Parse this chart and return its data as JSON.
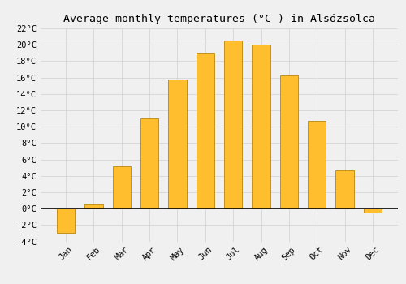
{
  "title": "Average monthly temperatures (°C ) in Alsózsolca",
  "months": [
    "Jan",
    "Feb",
    "Mar",
    "Apr",
    "May",
    "Jun",
    "Jul",
    "Aug",
    "Sep",
    "Oct",
    "Nov",
    "Dec"
  ],
  "values": [
    -3.0,
    0.5,
    5.2,
    11.0,
    15.8,
    19.0,
    20.5,
    20.0,
    16.3,
    10.7,
    4.7,
    -0.5
  ],
  "bar_color_pos": "#FFBE2E",
  "bar_color_neg": "#FFBE2E",
  "bar_edge_color": "#B8860B",
  "ylim": [
    -4,
    22
  ],
  "yticks": [
    -4,
    -2,
    0,
    2,
    4,
    6,
    8,
    10,
    12,
    14,
    16,
    18,
    20,
    22
  ],
  "background_color": "#f0f0f0",
  "grid_color": "#d0d0d0",
  "title_fontsize": 9.5,
  "tick_fontsize": 7.5,
  "bar_width": 0.65
}
